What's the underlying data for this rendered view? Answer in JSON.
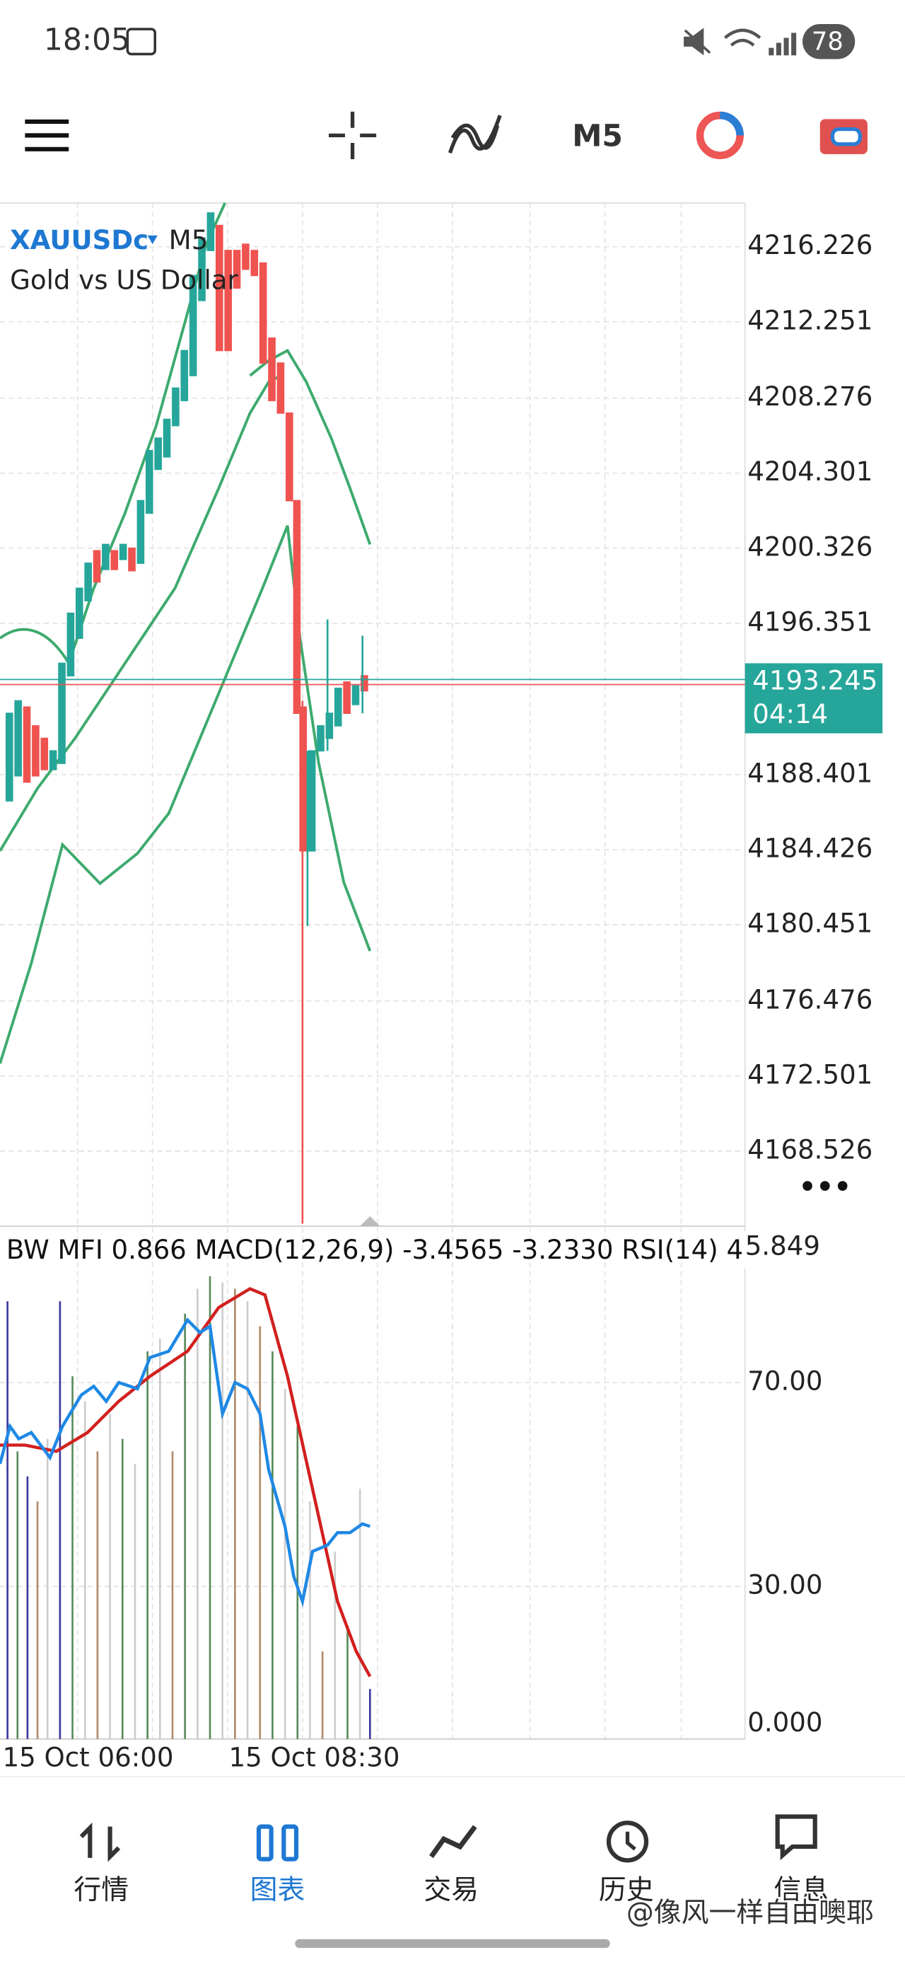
{
  "status_bar": {
    "time": "18:05",
    "battery": "78"
  },
  "toolbar": {
    "timeframe": "M5"
  },
  "chart": {
    "symbol": "XAUUSDc",
    "timeframe": "M5",
    "description": "Gold vs US Dollar",
    "price_ticks": [
      "4216.226",
      "4212.251",
      "4208.276",
      "4204.301",
      "4200.326",
      "4196.351",
      "4188.401",
      "4184.426",
      "4180.451",
      "4176.476",
      "4172.501",
      "4168.526"
    ],
    "current_price": "4193.245",
    "countdown": "04:14",
    "more": "•••"
  },
  "indicator": {
    "header": "BW MFI 0.866 MACD(12,26,9) -3.4565 -3.2330 RSI(14) 4",
    "top_label": "5.849",
    "ticks": [
      "70.00",
      "30.00",
      "0.000"
    ]
  },
  "time_axis": [
    "15 Oct 06:00",
    "15 Oct 08:30"
  ],
  "nav": [
    "行情",
    "图表",
    "交易",
    "历史",
    "信息"
  ],
  "watermark": "@像风一样自由噢耶"
}
